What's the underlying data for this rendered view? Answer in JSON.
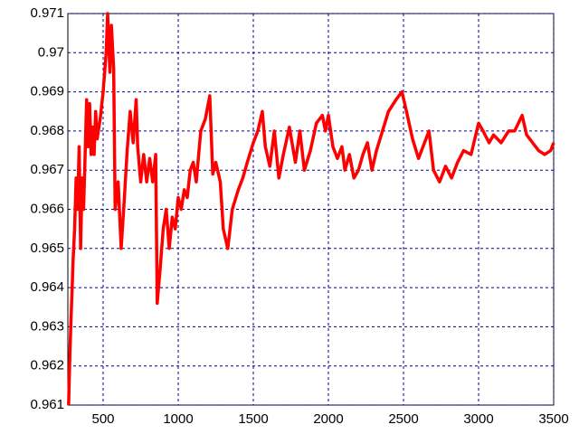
{
  "chart_data": {
    "type": "line",
    "x": [
      270,
      280,
      290,
      300,
      310,
      320,
      330,
      340,
      350,
      360,
      370,
      390,
      400,
      410,
      420,
      430,
      440,
      450,
      460,
      480,
      500,
      520,
      530,
      545,
      555,
      570,
      580,
      600,
      620,
      640,
      660,
      680,
      700,
      720,
      730,
      750,
      770,
      790,
      810,
      830,
      850,
      860,
      880,
      900,
      920,
      940,
      960,
      980,
      1000,
      1020,
      1040,
      1060,
      1080,
      1100,
      1120,
      1150,
      1180,
      1210,
      1230,
      1250,
      1280,
      1300,
      1330,
      1360,
      1400,
      1430,
      1460,
      1500,
      1530,
      1560,
      1580,
      1610,
      1640,
      1670,
      1700,
      1740,
      1780,
      1810,
      1840,
      1880,
      1920,
      1960,
      1980,
      2000,
      2030,
      2060,
      2090,
      2110,
      2140,
      2170,
      2200,
      2230,
      2260,
      2290,
      2320,
      2360,
      2400,
      2450,
      2490,
      2520,
      2560,
      2600,
      2630,
      2670,
      2700,
      2740,
      2780,
      2820,
      2860,
      2900,
      2950,
      3000,
      3030,
      3070,
      3100,
      3150,
      3200,
      3240,
      3290,
      3320,
      3360,
      3400,
      3440,
      3480,
      3500
    ],
    "series": [
      {
        "color": "#ff0000",
        "values": [
          0.961,
          0.9625,
          0.9636,
          0.9647,
          0.9655,
          0.9668,
          0.966,
          0.9676,
          0.965,
          0.9668,
          0.966,
          0.9688,
          0.9676,
          0.9687,
          0.9674,
          0.9681,
          0.9674,
          0.9685,
          0.9678,
          0.9683,
          0.969,
          0.97,
          0.971,
          0.9695,
          0.9707,
          0.9696,
          0.966,
          0.9667,
          0.965,
          0.9662,
          0.9675,
          0.9685,
          0.9677,
          0.9688,
          0.9676,
          0.9667,
          0.9674,
          0.9667,
          0.9673,
          0.9667,
          0.9674,
          0.9636,
          0.9645,
          0.9655,
          0.966,
          0.965,
          0.9658,
          0.9655,
          0.9663,
          0.966,
          0.9665,
          0.9663,
          0.967,
          0.9672,
          0.9667,
          0.968,
          0.9683,
          0.9689,
          0.9669,
          0.9672,
          0.9667,
          0.9655,
          0.965,
          0.966,
          0.9665,
          0.9668,
          0.9672,
          0.9677,
          0.968,
          0.9685,
          0.9676,
          0.9671,
          0.968,
          0.9668,
          0.9674,
          0.9681,
          0.9672,
          0.968,
          0.967,
          0.9675,
          0.9682,
          0.9684,
          0.968,
          0.9684,
          0.9676,
          0.9673,
          0.9676,
          0.967,
          0.9674,
          0.9668,
          0.967,
          0.9674,
          0.9677,
          0.967,
          0.9675,
          0.968,
          0.9685,
          0.9688,
          0.969,
          0.9685,
          0.9678,
          0.9673,
          0.9676,
          0.968,
          0.967,
          0.9667,
          0.9671,
          0.9668,
          0.9672,
          0.9675,
          0.9674,
          0.9682,
          0.968,
          0.9677,
          0.9679,
          0.9677,
          0.968,
          0.968,
          0.9684,
          0.9679,
          0.9677,
          0.9675,
          0.9674,
          0.9675,
          0.9677
        ]
      }
    ],
    "xlim": [
      265,
      3500
    ],
    "xticks": [
      500,
      1000,
      1500,
      2000,
      2500,
      3000,
      3500
    ],
    "ylim": [
      0.961,
      0.971
    ],
    "yticks": [
      0.961,
      0.962,
      0.963,
      0.964,
      0.965,
      0.966,
      0.967,
      0.968,
      0.969,
      0.97,
      0.971
    ],
    "grid": true
  }
}
